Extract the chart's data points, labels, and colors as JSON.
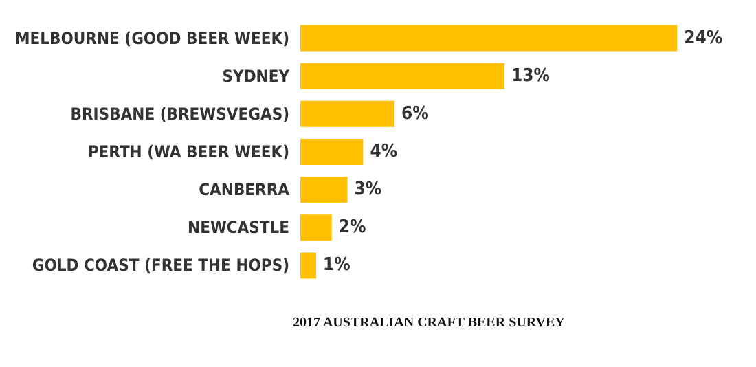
{
  "chart_data": {
    "type": "bar",
    "orientation": "horizontal",
    "title": "2017 AUSTRALIAN CRAFT BEER SURVEY",
    "categories": [
      "MELBOURNE (GOOD BEER WEEK)",
      "SYDNEY",
      "BRISBANE (BREWSVEGAS)",
      "PERTH (WA BEER WEEK)",
      "CANBERRA",
      "NEWCASTLE",
      "GOLD COAST (FREE THE HOPS)"
    ],
    "values": [
      24,
      13,
      6,
      4,
      3,
      2,
      1
    ],
    "value_labels": [
      "24%",
      "13%",
      "6%",
      "4%",
      "3%",
      "2%",
      "1%"
    ],
    "color": "#ffc000"
  }
}
